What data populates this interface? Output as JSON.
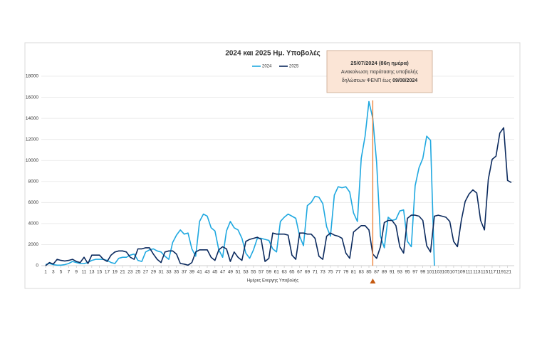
{
  "chart_data": {
    "type": "line",
    "title": "2024 και 2025 Ημ. Υποβολές",
    "x_label": "Ημέρες Ενεργης Υποβολής",
    "x": [
      1,
      2,
      3,
      4,
      5,
      6,
      7,
      8,
      9,
      10,
      11,
      12,
      13,
      14,
      15,
      16,
      17,
      18,
      19,
      20,
      21,
      22,
      23,
      24,
      25,
      26,
      27,
      28,
      29,
      30,
      31,
      32,
      33,
      34,
      35,
      36,
      37,
      38,
      39,
      40,
      41,
      42,
      43,
      44,
      45,
      46,
      47,
      48,
      49,
      50,
      51,
      52,
      53,
      54,
      55,
      56,
      57,
      58,
      59,
      60,
      61,
      62,
      63,
      64,
      65,
      66,
      67,
      68,
      69,
      70,
      71,
      72,
      73,
      74,
      75,
      76,
      77,
      78,
      79,
      80,
      81,
      82,
      83,
      84,
      85,
      86,
      87,
      88,
      89,
      90,
      91,
      92,
      93,
      94,
      95,
      96,
      97,
      98,
      99,
      100,
      101,
      102,
      103,
      104,
      105,
      106,
      107,
      108,
      109,
      110,
      111,
      112,
      113,
      114,
      115,
      116,
      117,
      118,
      119,
      120,
      121,
      122
    ],
    "xlim": [
      1,
      122
    ],
    "xticks": [
      1,
      3,
      5,
      7,
      9,
      11,
      13,
      15,
      17,
      19,
      21,
      23,
      25,
      27,
      29,
      31,
      33,
      35,
      37,
      39,
      41,
      43,
      45,
      47,
      49,
      51,
      53,
      55,
      57,
      59,
      61,
      63,
      65,
      67,
      69,
      71,
      73,
      75,
      77,
      79,
      81,
      83,
      85,
      87,
      89,
      91,
      93,
      95,
      97,
      99,
      101,
      103,
      105,
      107,
      109,
      111,
      113,
      115,
      117,
      119,
      121
    ],
    "ylim": [
      0,
      18000
    ],
    "yticks": [
      0,
      2000,
      4000,
      6000,
      8000,
      10000,
      12000,
      14000,
      16000,
      18000
    ],
    "grid": true,
    "series": [
      {
        "name": "2024",
        "color": "#1fa8e0",
        "values": [
          100,
          200,
          100,
          50,
          50,
          100,
          200,
          400,
          300,
          200,
          200,
          300,
          500,
          600,
          600,
          600,
          500,
          300,
          200,
          700,
          800,
          800,
          1000,
          1100,
          500,
          400,
          1300,
          1500,
          1600,
          1400,
          1300,
          900,
          600,
          2200,
          2900,
          3400,
          3000,
          3100,
          1600,
          900,
          4200,
          4900,
          4700,
          3600,
          3300,
          1500,
          800,
          3300,
          4200,
          3600,
          3400,
          2600,
          1200,
          700,
          1500,
          2600,
          2600,
          2500,
          2400,
          1600,
          1300,
          4200,
          4600,
          4900,
          4700,
          4500,
          2800,
          1900,
          5700,
          6000,
          6600,
          6500,
          5900,
          3700,
          2800,
          6700,
          7500,
          7400,
          7500,
          7000,
          5000,
          4200,
          10200,
          12300,
          15600,
          14000,
          9800,
          2800,
          1700,
          4600,
          4300,
          4400,
          5200,
          5300,
          2300,
          1800,
          7600,
          9300,
          10200,
          12300,
          11900,
          0,
          null,
          null,
          null,
          null,
          null,
          null,
          null,
          null,
          null,
          null,
          null,
          null,
          null,
          null,
          null,
          null,
          null,
          null,
          null,
          null
        ]
      },
      {
        "name": "2025",
        "color": "#0b2a5e",
        "values": [
          0,
          300,
          150,
          600,
          500,
          450,
          500,
          600,
          400,
          300,
          800,
          200,
          1000,
          1000,
          1000,
          600,
          400,
          1000,
          1300,
          1400,
          1400,
          1300,
          800,
          600,
          1600,
          1600,
          1700,
          1700,
          1100,
          600,
          300,
          1300,
          1400,
          1400,
          1100,
          200,
          150,
          50,
          300,
          1300,
          1500,
          1500,
          1500,
          800,
          500,
          1500,
          1800,
          1600,
          400,
          1300,
          800,
          500,
          2300,
          2500,
          2600,
          2700,
          2500,
          400,
          700,
          3100,
          3000,
          3000,
          3000,
          2900,
          1000,
          600,
          3100,
          3100,
          3000,
          3000,
          2600,
          900,
          600,
          2800,
          3100,
          2900,
          2800,
          2600,
          1200,
          700,
          3200,
          3500,
          3800,
          3800,
          3400,
          1100,
          700,
          1800,
          4100,
          4300,
          4300,
          3800,
          1800,
          1200,
          4500,
          4800,
          4800,
          4700,
          4300,
          1900,
          1300,
          4700,
          4800,
          4700,
          4600,
          4200,
          2300,
          1800,
          4300,
          6100,
          6800,
          7200,
          6900,
          4300,
          3400,
          8200,
          10100,
          10400,
          12600,
          13100,
          8100,
          7900
        ]
      }
    ],
    "annotation": {
      "x": 86,
      "color": "#ed7d31",
      "lines": [
        "25/07/2024 (86η ημέρα)",
        "Ανακοίνωση παράτασης υποβολής",
        "δηλώσεων ΦΕΝΠ έως"
      ],
      "bold": "09/08/2024"
    }
  }
}
